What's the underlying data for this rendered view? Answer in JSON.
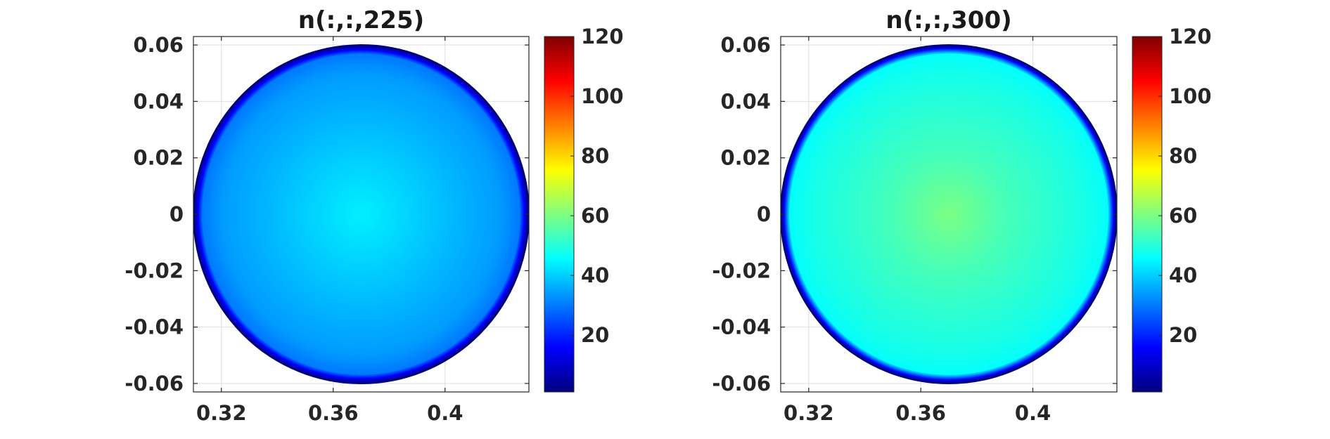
{
  "chart_data": [
    {
      "type": "heatmap",
      "title": "n(:,:,225)",
      "xlabel": "",
      "ylabel": "",
      "xlim": [
        0.31,
        0.43
      ],
      "ylim": [
        -0.063,
        0.063
      ],
      "x_ticks": [
        0.32,
        0.36,
        0.4
      ],
      "x_tick_labels": [
        "0.32",
        "0.36",
        "0.4"
      ],
      "y_ticks": [
        0.06,
        0.04,
        0.02,
        0,
        -0.02,
        -0.04,
        -0.06
      ],
      "y_tick_labels": [
        "0.06",
        "0.04",
        "0.02",
        "0",
        "-0.02",
        "-0.04",
        "-0.06"
      ],
      "grid": true,
      "domain": {
        "shape": "disk",
        "center": [
          0.37,
          0
        ],
        "radius": 0.06
      },
      "radial_profile": {
        "r": [
          0,
          0.01,
          0.02,
          0.03,
          0.04,
          0.05,
          0.057,
          0.06
        ],
        "value": [
          44,
          42,
          40,
          38,
          36,
          34,
          30,
          2
        ]
      },
      "colorbar": {
        "colormap": "jet",
        "clim": [
          1,
          120
        ],
        "ticks": [
          20,
          40,
          60,
          80,
          100,
          120
        ],
        "tick_labels": [
          "20",
          "40",
          "60",
          "80",
          "100",
          "120"
        ]
      }
    },
    {
      "type": "heatmap",
      "title": "n(:,:,300)",
      "xlabel": "",
      "ylabel": "",
      "xlim": [
        0.31,
        0.43
      ],
      "ylim": [
        -0.063,
        0.063
      ],
      "x_ticks": [
        0.32,
        0.36,
        0.4
      ],
      "x_tick_labels": [
        "0.32",
        "0.36",
        "0.4"
      ],
      "y_ticks": [
        0.06,
        0.04,
        0.02,
        0,
        -0.02,
        -0.04,
        -0.06
      ],
      "y_tick_labels": [
        "0.06",
        "0.04",
        "0.02",
        "0",
        "-0.02",
        "-0.04",
        "-0.06"
      ],
      "grid": true,
      "domain": {
        "shape": "disk",
        "center": [
          0.37,
          0
        ],
        "radius": 0.06
      },
      "radial_profile": {
        "r": [
          0,
          0.01,
          0.02,
          0.03,
          0.04,
          0.05,
          0.057,
          0.06
        ],
        "value": [
          60,
          57,
          54,
          52,
          50,
          48,
          46,
          2
        ]
      },
      "colorbar": {
        "colormap": "jet",
        "clim": [
          1,
          120
        ],
        "ticks": [
          20,
          40,
          60,
          80,
          100,
          120
        ],
        "tick_labels": [
          "20",
          "40",
          "60",
          "80",
          "100",
          "120"
        ]
      }
    }
  ]
}
